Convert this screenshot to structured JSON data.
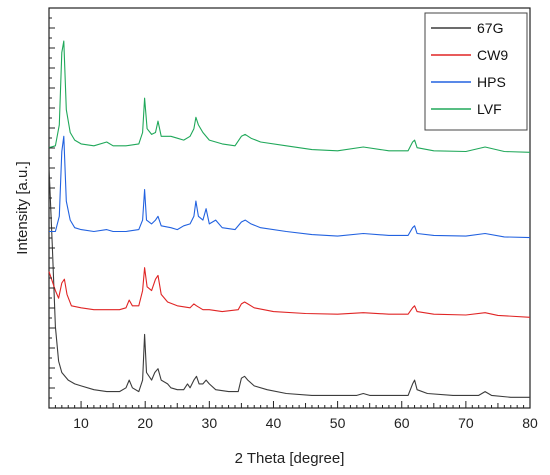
{
  "chart_data": {
    "type": "line",
    "title": "",
    "xlabel": "2 Theta [degree]",
    "ylabel": "Intensity [a.u.]",
    "xlim": [
      5,
      80
    ],
    "xticks": [
      10,
      20,
      30,
      40,
      50,
      60,
      70,
      80
    ],
    "y_tick_labels_shown": false,
    "grid": false,
    "legend_position": "top-right",
    "series": [
      {
        "name": "67G",
        "color": "#3c3c3c",
        "baseline": 0.0,
        "points": [
          [
            5,
            0.62
          ],
          [
            5.5,
            0.42
          ],
          [
            6,
            0.2
          ],
          [
            6.5,
            0.11
          ],
          [
            7,
            0.08
          ],
          [
            8,
            0.06
          ],
          [
            9,
            0.05
          ],
          [
            10,
            0.045
          ],
          [
            12,
            0.035
          ],
          [
            14,
            0.03
          ],
          [
            16,
            0.03
          ],
          [
            17,
            0.04
          ],
          [
            17.5,
            0.06
          ],
          [
            18,
            0.04
          ],
          [
            19,
            0.03
          ],
          [
            19.6,
            0.06
          ],
          [
            19.9,
            0.18
          ],
          [
            20.2,
            0.08
          ],
          [
            21,
            0.06
          ],
          [
            21.5,
            0.08
          ],
          [
            22,
            0.09
          ],
          [
            22.5,
            0.06
          ],
          [
            23.5,
            0.05
          ],
          [
            24,
            0.04
          ],
          [
            25,
            0.035
          ],
          [
            26,
            0.035
          ],
          [
            26.6,
            0.05
          ],
          [
            27,
            0.04
          ],
          [
            27.6,
            0.06
          ],
          [
            28,
            0.07
          ],
          [
            28.4,
            0.05
          ],
          [
            29,
            0.05
          ],
          [
            29.5,
            0.06
          ],
          [
            30,
            0.05
          ],
          [
            31,
            0.035
          ],
          [
            33,
            0.03
          ],
          [
            34.5,
            0.03
          ],
          [
            35,
            0.065
          ],
          [
            35.5,
            0.07
          ],
          [
            36,
            0.06
          ],
          [
            37,
            0.045
          ],
          [
            39,
            0.035
          ],
          [
            42,
            0.025
          ],
          [
            46,
            0.02
          ],
          [
            50,
            0.02
          ],
          [
            53,
            0.02
          ],
          [
            54,
            0.025
          ],
          [
            55,
            0.02
          ],
          [
            58,
            0.02
          ],
          [
            61,
            0.02
          ],
          [
            61.7,
            0.05
          ],
          [
            62,
            0.06
          ],
          [
            62.4,
            0.035
          ],
          [
            64,
            0.025
          ],
          [
            68,
            0.02
          ],
          [
            72,
            0.02
          ],
          [
            73,
            0.03
          ],
          [
            74,
            0.02
          ],
          [
            77,
            0.015
          ],
          [
            80,
            0.015
          ]
        ]
      },
      {
        "name": "CW9",
        "color": "#e02525",
        "baseline": 0.225,
        "points": [
          [
            5,
            0.12
          ],
          [
            6,
            0.07
          ],
          [
            6.5,
            0.05
          ],
          [
            7,
            0.09
          ],
          [
            7.4,
            0.1
          ],
          [
            7.8,
            0.06
          ],
          [
            8.5,
            0.03
          ],
          [
            10,
            0.025
          ],
          [
            12,
            0.02
          ],
          [
            14,
            0.02
          ],
          [
            16,
            0.02
          ],
          [
            17,
            0.025
          ],
          [
            17.5,
            0.045
          ],
          [
            18,
            0.03
          ],
          [
            19,
            0.03
          ],
          [
            19.6,
            0.07
          ],
          [
            19.9,
            0.13
          ],
          [
            20.3,
            0.08
          ],
          [
            21,
            0.07
          ],
          [
            21.6,
            0.1
          ],
          [
            22,
            0.11
          ],
          [
            22.5,
            0.06
          ],
          [
            23.5,
            0.04
          ],
          [
            25,
            0.03
          ],
          [
            27,
            0.025
          ],
          [
            27.6,
            0.035
          ],
          [
            28,
            0.03
          ],
          [
            29,
            0.02
          ],
          [
            30,
            0.02
          ],
          [
            32,
            0.015
          ],
          [
            34.5,
            0.02
          ],
          [
            35,
            0.035
          ],
          [
            35.5,
            0.04
          ],
          [
            36,
            0.035
          ],
          [
            37,
            0.025
          ],
          [
            40,
            0.015
          ],
          [
            45,
            0.01
          ],
          [
            50,
            0.008
          ],
          [
            54,
            0.012
          ],
          [
            58,
            0.008
          ],
          [
            61,
            0.008
          ],
          [
            61.7,
            0.025
          ],
          [
            62,
            0.03
          ],
          [
            62.4,
            0.015
          ],
          [
            65,
            0.008
          ],
          [
            70,
            0.006
          ],
          [
            73,
            0.012
          ],
          [
            75,
            0.005
          ],
          [
            80,
            0.0
          ]
        ]
      },
      {
        "name": "HPS",
        "color": "#2262e0",
        "baseline": 0.43,
        "points": [
          [
            5,
            0.02
          ],
          [
            6,
            0.02
          ],
          [
            6.6,
            0.06
          ],
          [
            7,
            0.23
          ],
          [
            7.3,
            0.27
          ],
          [
            7.7,
            0.1
          ],
          [
            8.3,
            0.05
          ],
          [
            9,
            0.03
          ],
          [
            10,
            0.025
          ],
          [
            12,
            0.02
          ],
          [
            14,
            0.025
          ],
          [
            15,
            0.02
          ],
          [
            17,
            0.02
          ],
          [
            19,
            0.025
          ],
          [
            19.6,
            0.05
          ],
          [
            19.9,
            0.13
          ],
          [
            20.2,
            0.05
          ],
          [
            21,
            0.04
          ],
          [
            21.6,
            0.05
          ],
          [
            22,
            0.06
          ],
          [
            22.5,
            0.035
          ],
          [
            24,
            0.03
          ],
          [
            25,
            0.025
          ],
          [
            26,
            0.035
          ],
          [
            27,
            0.04
          ],
          [
            27.6,
            0.06
          ],
          [
            27.9,
            0.1
          ],
          [
            28.3,
            0.06
          ],
          [
            29,
            0.05
          ],
          [
            29.5,
            0.08
          ],
          [
            30,
            0.04
          ],
          [
            31,
            0.05
          ],
          [
            32,
            0.03
          ],
          [
            34,
            0.025
          ],
          [
            35,
            0.045
          ],
          [
            35.6,
            0.05
          ],
          [
            36.5,
            0.04
          ],
          [
            38,
            0.03
          ],
          [
            42,
            0.02
          ],
          [
            46,
            0.012
          ],
          [
            50,
            0.008
          ],
          [
            54,
            0.015
          ],
          [
            58,
            0.01
          ],
          [
            61,
            0.01
          ],
          [
            61.7,
            0.03
          ],
          [
            62,
            0.035
          ],
          [
            62.4,
            0.015
          ],
          [
            65,
            0.01
          ],
          [
            70,
            0.008
          ],
          [
            73,
            0.015
          ],
          [
            76,
            0.006
          ],
          [
            80,
            0.004
          ]
        ]
      },
      {
        "name": "LVF",
        "color": "#20a85a",
        "baseline": 0.65,
        "points": [
          [
            5,
            0.02
          ],
          [
            6,
            0.025
          ],
          [
            6.6,
            0.08
          ],
          [
            7,
            0.27
          ],
          [
            7.3,
            0.3
          ],
          [
            7.7,
            0.12
          ],
          [
            8.3,
            0.06
          ],
          [
            9,
            0.04
          ],
          [
            10,
            0.03
          ],
          [
            12,
            0.025
          ],
          [
            14,
            0.035
          ],
          [
            15,
            0.025
          ],
          [
            17,
            0.025
          ],
          [
            19,
            0.03
          ],
          [
            19.6,
            0.06
          ],
          [
            19.9,
            0.15
          ],
          [
            20.3,
            0.07
          ],
          [
            21,
            0.055
          ],
          [
            21.6,
            0.06
          ],
          [
            22,
            0.09
          ],
          [
            22.5,
            0.05
          ],
          [
            24,
            0.05
          ],
          [
            25,
            0.045
          ],
          [
            26,
            0.04
          ],
          [
            27,
            0.05
          ],
          [
            27.6,
            0.07
          ],
          [
            27.9,
            0.1
          ],
          [
            28.3,
            0.08
          ],
          [
            29,
            0.06
          ],
          [
            30,
            0.04
          ],
          [
            32,
            0.03
          ],
          [
            34,
            0.025
          ],
          [
            35,
            0.05
          ],
          [
            35.6,
            0.055
          ],
          [
            36.5,
            0.045
          ],
          [
            38,
            0.035
          ],
          [
            42,
            0.025
          ],
          [
            46,
            0.015
          ],
          [
            50,
            0.012
          ],
          [
            54,
            0.022
          ],
          [
            58,
            0.012
          ],
          [
            61,
            0.012
          ],
          [
            61.7,
            0.035
          ],
          [
            62,
            0.04
          ],
          [
            62.4,
            0.02
          ],
          [
            65,
            0.012
          ],
          [
            70,
            0.01
          ],
          [
            73,
            0.022
          ],
          [
            76,
            0.01
          ],
          [
            80,
            0.008
          ]
        ]
      }
    ]
  }
}
